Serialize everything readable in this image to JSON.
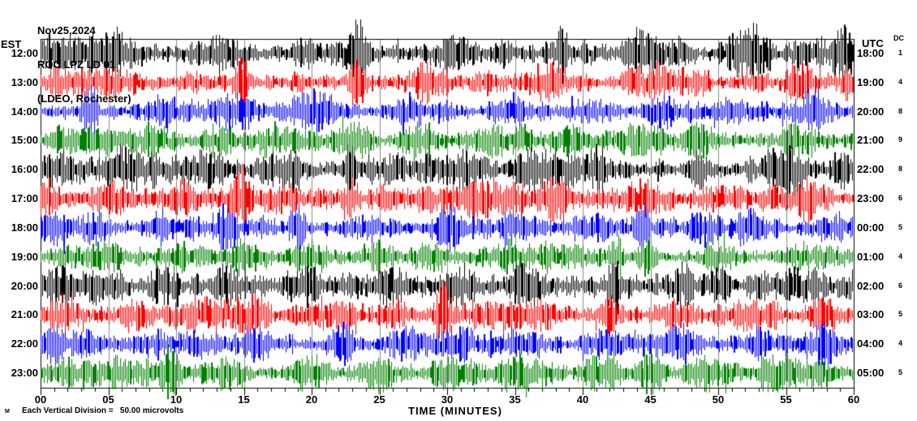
{
  "chart_data": {
    "type": "line",
    "subtype": "helicorder-seismogram",
    "header": {
      "date": "Nov25,2024",
      "station": "ROC LPZ LD 01",
      "network": "(LDEO, Rochester)"
    },
    "left_time_label": "EST",
    "right_time_label": "UTC",
    "dc_column_label": "DC",
    "xlabel": "TIME (MINUTES)",
    "x_tick_labels": [
      "00",
      "05",
      "10",
      "15",
      "20",
      "25",
      "30",
      "35",
      "40",
      "45",
      "50",
      "55",
      "60"
    ],
    "x_range_minutes": [
      0,
      60
    ],
    "minutes_per_row": 60,
    "grid": "vertical gray line every 5 minutes, black border, minute ticks below axis",
    "scale_note": "Each Vertical Division =   50.00 microvolts",
    "watermark": "M",
    "colors_cycle": [
      "#000000",
      "#ff0000",
      "#0000ff",
      "#008000"
    ],
    "grid_color": "#8a8a8a",
    "rows": [
      {
        "est": "12:00",
        "utc": "18:00",
        "dc": "1",
        "color": "#000000",
        "seed": 101,
        "base_amp": 13,
        "bursts": [
          [
            1.5,
            16,
            1.2
          ],
          [
            5,
            20,
            1.5
          ],
          [
            13.5,
            16,
            1
          ],
          [
            23.4,
            32,
            0.25
          ],
          [
            23,
            16,
            1
          ],
          [
            30.5,
            14,
            1
          ],
          [
            38.5,
            26,
            0.3
          ],
          [
            44,
            16,
            0.8
          ],
          [
            52,
            14,
            0.8
          ],
          [
            59,
            22,
            0.5
          ]
        ]
      },
      {
        "est": "13:00",
        "utc": "19:00",
        "dc": "4",
        "color": "#ff0000",
        "seed": 202,
        "base_amp": 12,
        "bursts": [
          [
            2,
            14,
            1
          ],
          [
            5.2,
            16,
            1
          ],
          [
            14.8,
            26,
            0.4
          ],
          [
            23.3,
            22,
            0.5
          ],
          [
            29,
            12,
            1
          ],
          [
            37,
            12,
            1
          ],
          [
            45.5,
            18,
            0.8
          ],
          [
            56,
            12,
            1
          ],
          [
            59.5,
            16,
            0.4
          ]
        ]
      },
      {
        "est": "14:00",
        "utc": "20:00",
        "dc": "8",
        "color": "#0000ff",
        "seed": 303,
        "base_amp": 11,
        "bursts": [
          [
            3.5,
            24,
            0.4
          ],
          [
            9,
            10,
            1
          ],
          [
            14,
            12,
            1
          ],
          [
            20,
            16,
            0.8
          ],
          [
            27,
            10,
            1
          ],
          [
            35,
            12,
            1
          ],
          [
            41,
            10,
            1
          ],
          [
            46,
            20,
            0.6
          ],
          [
            51,
            10,
            1
          ],
          [
            57,
            14,
            0.8
          ]
        ]
      },
      {
        "est": "15:00",
        "utc": "21:00",
        "dc": "9",
        "color": "#008000",
        "seed": 404,
        "base_amp": 11,
        "bursts": [
          [
            2,
            10,
            1
          ],
          [
            8,
            12,
            1
          ],
          [
            13,
            10,
            1
          ],
          [
            17,
            14,
            0.8
          ],
          [
            23,
            10,
            1
          ],
          [
            28,
            12,
            1
          ],
          [
            33,
            10,
            1
          ],
          [
            39,
            10,
            1
          ],
          [
            44,
            12,
            1
          ],
          [
            48.5,
            18,
            0.7
          ],
          [
            56,
            12,
            1
          ]
        ]
      },
      {
        "est": "16:00",
        "utc": "22:00",
        "dc": "8",
        "color": "#000000",
        "seed": 505,
        "base_amp": 13,
        "bursts": [
          [
            1,
            18,
            0.8
          ],
          [
            6,
            14,
            1
          ],
          [
            12,
            14,
            1
          ],
          [
            18,
            12,
            1
          ],
          [
            22.8,
            28,
            0.3
          ],
          [
            26,
            12,
            1
          ],
          [
            31,
            16,
            1
          ],
          [
            36,
            12,
            1
          ],
          [
            41,
            16,
            0.8
          ],
          [
            48.5,
            22,
            0.5
          ],
          [
            55,
            14,
            1
          ],
          [
            59,
            14,
            0.6
          ]
        ]
      },
      {
        "est": "17:00",
        "utc": "23:00",
        "dc": "6",
        "color": "#ff0000",
        "seed": 606,
        "base_amp": 12,
        "bursts": [
          [
            0.5,
            22,
            0.5
          ],
          [
            5,
            14,
            1
          ],
          [
            10,
            12,
            1
          ],
          [
            14.6,
            30,
            0.5
          ],
          [
            18,
            14,
            1
          ],
          [
            23,
            22,
            0.4
          ],
          [
            28,
            12,
            1
          ],
          [
            33,
            12,
            1
          ],
          [
            38,
            14,
            1
          ],
          [
            45,
            16,
            0.8
          ],
          [
            50,
            12,
            1
          ],
          [
            56.5,
            24,
            0.7
          ]
        ]
      },
      {
        "est": "18:00",
        "utc": "00:00",
        "dc": "5",
        "color": "#0000ff",
        "seed": 707,
        "base_amp": 11,
        "bursts": [
          [
            1,
            12,
            1
          ],
          [
            4,
            16,
            0.8
          ],
          [
            9,
            10,
            1
          ],
          [
            13.8,
            20,
            0.6
          ],
          [
            18.8,
            26,
            0.35
          ],
          [
            24,
            12,
            1
          ],
          [
            30,
            16,
            0.8
          ],
          [
            36,
            10,
            1
          ],
          [
            41,
            12,
            1
          ],
          [
            44.5,
            28,
            0.3
          ],
          [
            49,
            12,
            1
          ],
          [
            52,
            16,
            0.6
          ],
          [
            58,
            10,
            1
          ]
        ]
      },
      {
        "est": "19:00",
        "utc": "01:00",
        "dc": "4",
        "color": "#008000",
        "seed": 808,
        "base_amp": 11,
        "bursts": [
          [
            2,
            10,
            1
          ],
          [
            5,
            14,
            0.8
          ],
          [
            10,
            10,
            1
          ],
          [
            14.5,
            16,
            0.6
          ],
          [
            20,
            10,
            1
          ],
          [
            25,
            10,
            1
          ],
          [
            29,
            14,
            0.8
          ],
          [
            34,
            10,
            1
          ],
          [
            39,
            10,
            1
          ],
          [
            42.5,
            22,
            0.4
          ],
          [
            44.7,
            20,
            0.4
          ],
          [
            50,
            14,
            0.8
          ],
          [
            56,
            10,
            1
          ]
        ]
      },
      {
        "est": "20:00",
        "utc": "02:00",
        "dc": "6",
        "color": "#000000",
        "seed": 909,
        "base_amp": 13,
        "bursts": [
          [
            1,
            14,
            1
          ],
          [
            4,
            18,
            0.8
          ],
          [
            9,
            16,
            0.8
          ],
          [
            13.5,
            22,
            0.6
          ],
          [
            19,
            12,
            1
          ],
          [
            26,
            20,
            0.8
          ],
          [
            31,
            14,
            1
          ],
          [
            36,
            14,
            1
          ],
          [
            42.5,
            22,
            0.6
          ],
          [
            47,
            12,
            1
          ],
          [
            50,
            16,
            0.6
          ],
          [
            57,
            16,
            0.8
          ]
        ]
      },
      {
        "est": "21:00",
        "utc": "03:00",
        "dc": "5",
        "color": "#ff0000",
        "seed": 1010,
        "base_amp": 12,
        "bursts": [
          [
            2,
            14,
            0.8
          ],
          [
            7,
            12,
            1
          ],
          [
            11,
            12,
            1
          ],
          [
            16,
            22,
            0.5
          ],
          [
            21,
            12,
            1
          ],
          [
            26,
            12,
            1
          ],
          [
            29.7,
            32,
            0.5
          ],
          [
            34,
            12,
            1
          ],
          [
            37,
            14,
            0.8
          ],
          [
            42,
            18,
            0.6
          ],
          [
            47,
            12,
            1
          ],
          [
            52,
            14,
            0.8
          ],
          [
            58,
            12,
            1
          ]
        ]
      },
      {
        "est": "22:00",
        "utc": "04:00",
        "dc": "4",
        "color": "#0000ff",
        "seed": 1111,
        "base_amp": 11,
        "bursts": [
          [
            1,
            12,
            1
          ],
          [
            3.5,
            16,
            0.6
          ],
          [
            8,
            10,
            1
          ],
          [
            12,
            12,
            1
          ],
          [
            16,
            18,
            0.6
          ],
          [
            22,
            20,
            0.6
          ],
          [
            27,
            12,
            1
          ],
          [
            31,
            16,
            0.8
          ],
          [
            36,
            10,
            1
          ],
          [
            42,
            14,
            0.8
          ],
          [
            47,
            12,
            1
          ],
          [
            53,
            18,
            0.6
          ],
          [
            58,
            12,
            1
          ]
        ]
      },
      {
        "est": "23:00",
        "utc": "05:00",
        "dc": "5",
        "color": "#008000",
        "seed": 1212,
        "base_amp": 11,
        "bursts": [
          [
            2,
            12,
            1
          ],
          [
            6,
            12,
            1
          ],
          [
            9.7,
            28,
            0.4
          ],
          [
            14,
            10,
            1
          ],
          [
            19.5,
            16,
            0.8
          ],
          [
            25,
            12,
            1
          ],
          [
            30,
            16,
            0.8
          ],
          [
            35,
            12,
            1
          ],
          [
            41,
            14,
            0.8
          ],
          [
            45,
            12,
            1
          ],
          [
            49,
            18,
            0.7
          ],
          [
            54,
            12,
            1
          ],
          [
            57,
            14,
            0.8
          ]
        ]
      }
    ]
  }
}
